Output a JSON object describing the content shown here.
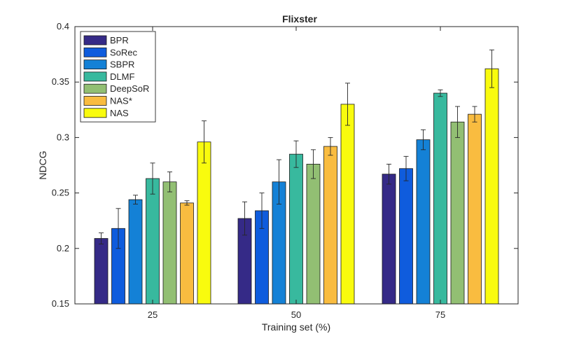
{
  "chart_data": {
    "type": "bar",
    "title": "Flixster",
    "xlabel": "Training set (%)",
    "ylabel": "NDCG",
    "ylim": [
      0.15,
      0.4
    ],
    "yticks": [
      "0.15",
      "0.2",
      "0.25",
      "0.3",
      "0.35",
      "0.4"
    ],
    "categories": [
      "25",
      "50",
      "75"
    ],
    "legend_position": "top-left",
    "grid": false,
    "error_bars": true,
    "series": [
      {
        "name": "BPR",
        "color": "#352a87",
        "values": [
          0.209,
          0.227,
          0.267
        ],
        "errors": [
          0.005,
          0.015,
          0.009
        ]
      },
      {
        "name": "SoRec",
        "color": "#0f5cdd",
        "values": [
          0.218,
          0.234,
          0.272
        ],
        "errors": [
          0.018,
          0.016,
          0.011
        ]
      },
      {
        "name": "SBPR",
        "color": "#1481d6",
        "values": [
          0.244,
          0.26,
          0.298
        ],
        "errors": [
          0.004,
          0.02,
          0.009
        ]
      },
      {
        "name": "DLMF",
        "color": "#38b99e",
        "values": [
          0.263,
          0.285,
          0.34
        ],
        "errors": [
          0.014,
          0.012,
          0.003
        ]
      },
      {
        "name": "DeepSoR",
        "color": "#92bf73",
        "values": [
          0.26,
          0.276,
          0.314
        ],
        "errors": [
          0.009,
          0.013,
          0.014
        ]
      },
      {
        "name": "NAS*",
        "color": "#f9bc40",
        "values": [
          0.241,
          0.292,
          0.321
        ],
        "errors": [
          0.002,
          0.008,
          0.007
        ]
      },
      {
        "name": "NAS",
        "color": "#f9fb0e",
        "values": [
          0.296,
          0.33,
          0.362
        ],
        "errors": [
          0.019,
          0.019,
          0.017
        ]
      }
    ]
  }
}
